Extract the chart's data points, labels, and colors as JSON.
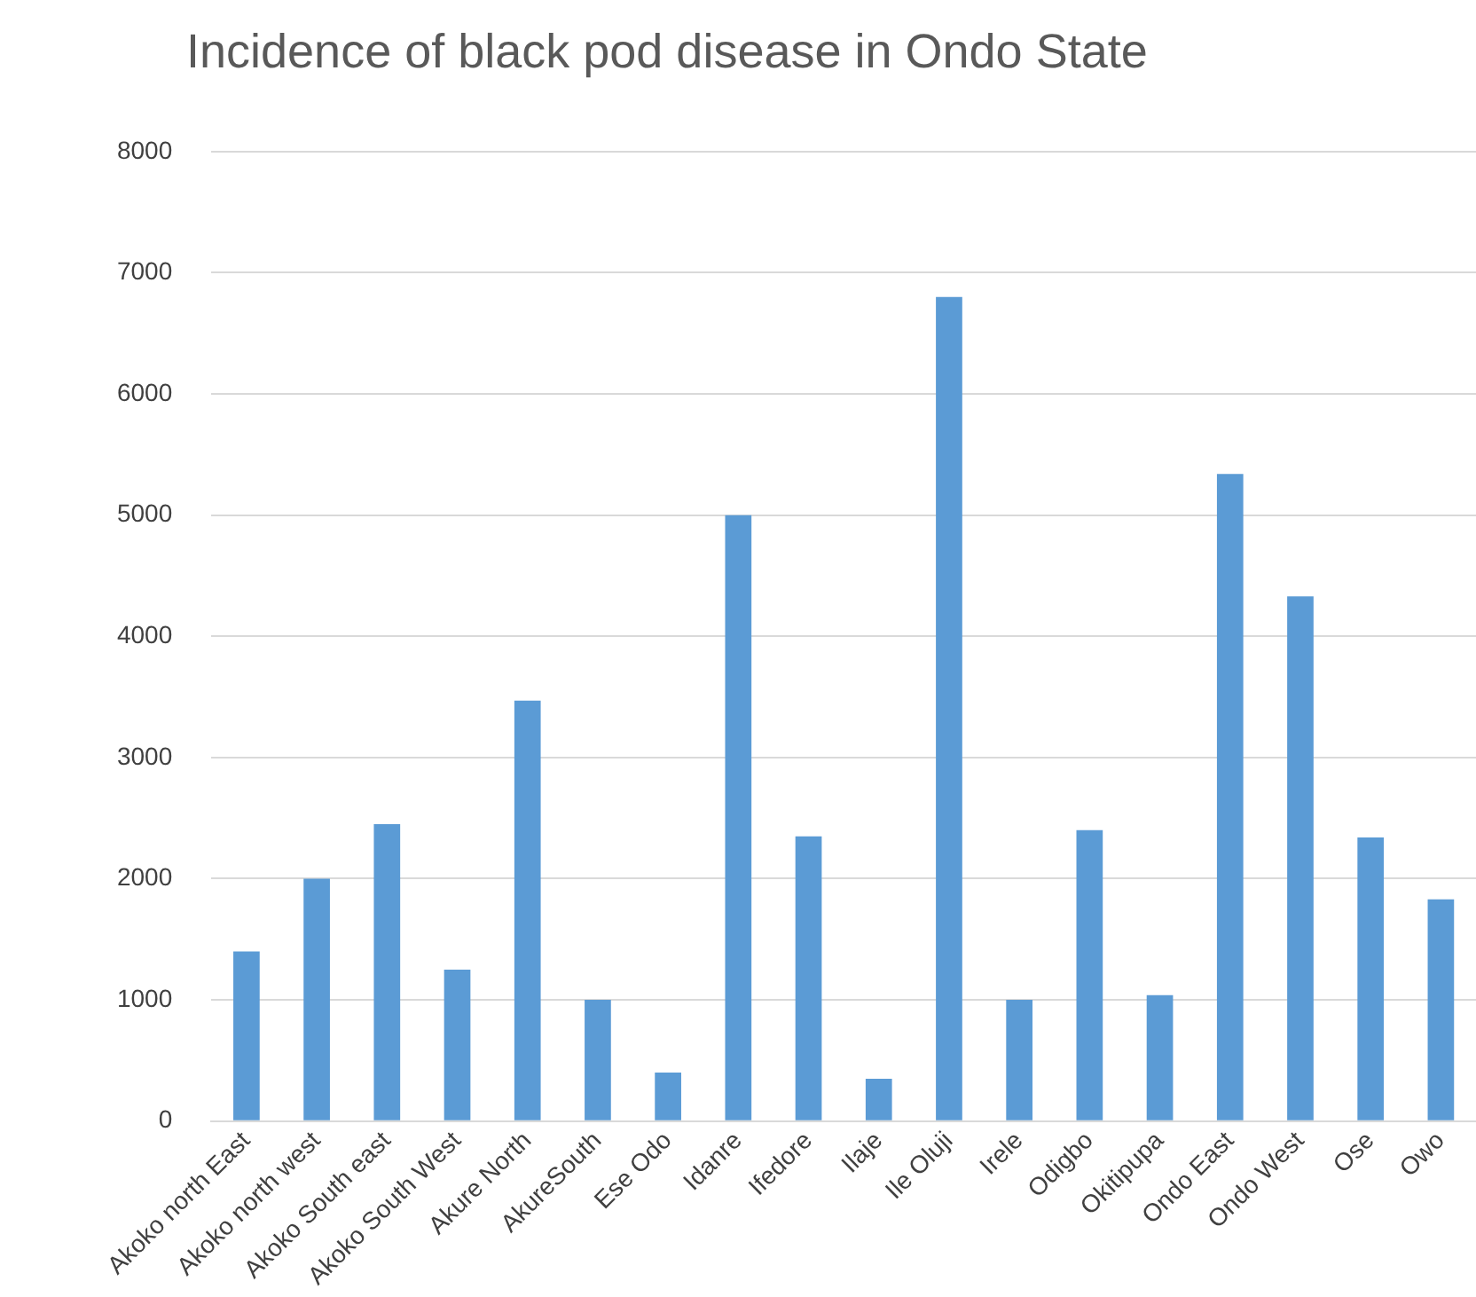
{
  "chart_data": {
    "type": "bar",
    "title": "Incidence of black pod disease in Ondo State",
    "categories": [
      "Akoko north East",
      "Akoko north west",
      "Akoko South east",
      "Akoko South West",
      "Akure North",
      "AkureSouth",
      "Ese Odo",
      "Idanre",
      "Ifedore",
      "Ilaje",
      "Ile Oluji",
      "Irele",
      "Odigbo",
      "Okitipupa",
      "Ondo East",
      "Ondo West",
      "Ose",
      "Owo"
    ],
    "values": [
      1400,
      2000,
      2450,
      1250,
      3470,
      1000,
      400,
      5000,
      2350,
      350,
      6800,
      1000,
      2400,
      1040,
      5340,
      4330,
      2340,
      1830
    ],
    "color": "#5b9bd5",
    "ylim": [
      0,
      8000
    ],
    "yticks": [
      0,
      1000,
      2000,
      3000,
      4000,
      5000,
      6000,
      7000,
      8000
    ],
    "grid": "y",
    "legend": false
  }
}
